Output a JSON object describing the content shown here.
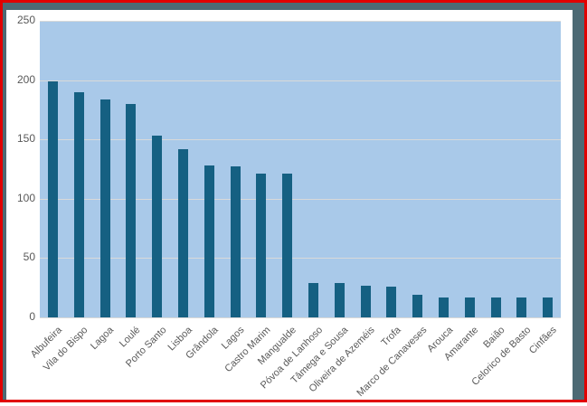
{
  "frame": {
    "outer_border_color": "#e10000",
    "mat_color": "#4d6a74",
    "background": "#ffffff"
  },
  "chart_data": {
    "type": "bar",
    "title": "",
    "xlabel": "",
    "ylabel": "",
    "categories": [
      "Albufeira",
      "Vila do Bispo",
      "Lagoa",
      "Loulé",
      "Porto Santo",
      "Lisboa",
      "Grândola",
      "Lagos",
      "Castro Marim",
      "Mangualde",
      "Póvoa de Lanhoso",
      "Tâmega e Sousa",
      "Oliveira de Azeméis",
      "Trofa",
      "Marco de Canaveses",
      "Arouca",
      "Amarante",
      "Baião",
      "Celorico de Basto",
      "Cinfães"
    ],
    "values": [
      199,
      190,
      184,
      180,
      153,
      142,
      128,
      127,
      121,
      121,
      29,
      29,
      27,
      26,
      19,
      17,
      17,
      17,
      17,
      17
    ],
    "ylim": [
      0,
      250
    ],
    "yticks": [
      0,
      50,
      100,
      150,
      200,
      250
    ],
    "grid": true,
    "legend_position": "none",
    "x_label_rotation_deg": 45,
    "colors": {
      "bar": "#156082",
      "plot_background": "#a9c9e9",
      "gridline": "#d9d9d9",
      "tick_label": "#595959"
    }
  }
}
